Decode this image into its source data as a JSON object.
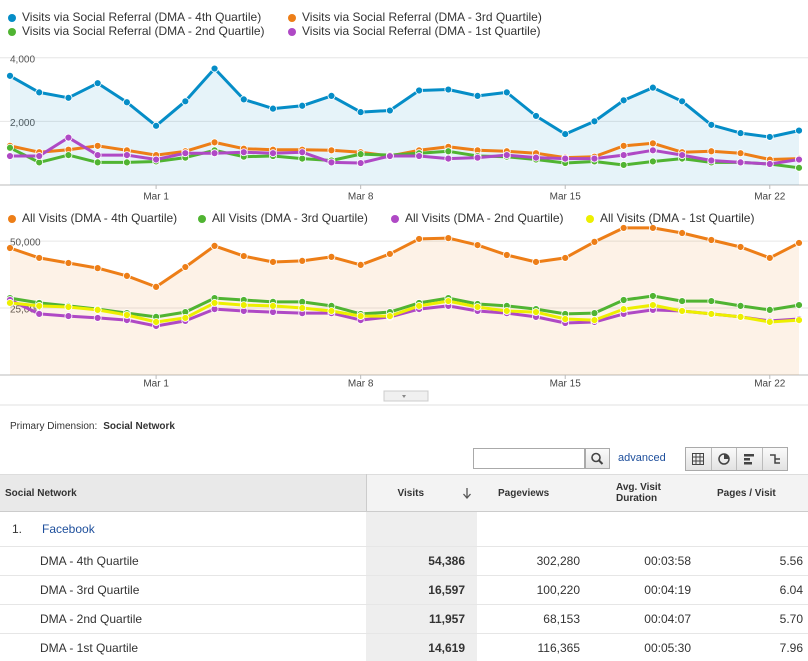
{
  "chart_data": [
    {
      "type": "line",
      "categories": [
        null,
        null,
        null,
        null,
        null,
        "Mar 1",
        null,
        null,
        null,
        null,
        null,
        null,
        "Mar 8",
        null,
        null,
        null,
        null,
        null,
        null,
        "Mar 15",
        null,
        null,
        null,
        null,
        null,
        null,
        "Mar 22",
        null
      ],
      "ylim": [
        0,
        4400
      ],
      "yticks": [
        {
          "value": 2000,
          "label": "2,000"
        },
        {
          "value": 4000,
          "label": "4,000"
        }
      ],
      "grid": true,
      "series": [
        {
          "name": "Visits via Social Referral (DMA - 4th Quartile)",
          "color": "#058dc7",
          "area": true,
          "values": [
            3430,
            2910,
            2740,
            3200,
            2600,
            1860,
            2630,
            3660,
            2690,
            2400,
            2490,
            2800,
            2290,
            2340,
            2970,
            3000,
            2800,
            2910,
            2170,
            1600,
            2000,
            2660,
            3060,
            2630,
            1890,
            1630,
            1510,
            1710
          ]
        },
        {
          "name": "Visits via Social Referral (DMA - 3rd Quartile)",
          "color": "#ed7e17",
          "values": [
            1230,
            1030,
            1110,
            1230,
            1090,
            940,
            1060,
            1340,
            1140,
            1110,
            1110,
            1090,
            1030,
            910,
            1090,
            1200,
            1090,
            1060,
            1000,
            860,
            890,
            1230,
            1310,
            1030,
            1060,
            1000,
            800,
            830
          ]
        },
        {
          "name": "Visits via Social Referral (DMA - 2nd Quartile)",
          "color": "#50b432",
          "values": [
            1170,
            710,
            940,
            710,
            710,
            740,
            860,
            1090,
            890,
            910,
            830,
            770,
            970,
            940,
            1000,
            1060,
            910,
            890,
            800,
            690,
            740,
            630,
            740,
            830,
            710,
            710,
            660,
            540
          ]
        },
        {
          "name": "Visits via Social Referral (DMA - 1st Quartile)",
          "color": "#af49c5",
          "values": [
            910,
            910,
            1490,
            940,
            940,
            800,
            1000,
            1000,
            1030,
            1000,
            1030,
            710,
            690,
            910,
            910,
            830,
            860,
            940,
            860,
            830,
            830,
            940,
            1090,
            940,
            770,
            710,
            660,
            800
          ]
        }
      ]
    },
    {
      "type": "line",
      "categories": [
        null,
        null,
        null,
        null,
        null,
        "Mar 1",
        null,
        null,
        null,
        null,
        null,
        null,
        "Mar 8",
        null,
        null,
        null,
        null,
        null,
        null,
        "Mar 15",
        null,
        null,
        null,
        null,
        null,
        null,
        "Mar 22",
        null
      ],
      "ylim": [
        0,
        56000
      ],
      "yticks": [
        {
          "value": 25000,
          "label": "25,000"
        },
        {
          "value": 50000,
          "label": "50,000"
        }
      ],
      "grid": true,
      "series": [
        {
          "name": "All Visits (DMA - 4th Quartile)",
          "color": "#ed7e17",
          "area": true,
          "values": [
            47400,
            43700,
            41800,
            39900,
            37000,
            32900,
            40300,
            48200,
            44400,
            42200,
            42600,
            44100,
            41100,
            45200,
            50800,
            51100,
            48500,
            44800,
            42200,
            43700,
            49700,
            54900,
            54900,
            53000,
            50400,
            47800,
            43700,
            49300
          ]
        },
        {
          "name": "All Visits (DMA - 3rd Quartile)",
          "color": "#50b432",
          "values": [
            28700,
            26900,
            25800,
            24600,
            23100,
            21700,
            23500,
            28700,
            28000,
            27300,
            27300,
            25800,
            22800,
            23500,
            26900,
            28700,
            26500,
            25800,
            24600,
            22800,
            23100,
            28000,
            29500,
            27600,
            27600,
            25800,
            24300,
            26100
          ]
        },
        {
          "name": "All Visits (DMA - 2nd Quartile)",
          "color": "#af49c5",
          "values": [
            28000,
            22800,
            22000,
            21300,
            20500,
            18300,
            20200,
            24600,
            23900,
            23500,
            23100,
            23100,
            20500,
            21700,
            24600,
            25800,
            23900,
            23100,
            21700,
            19400,
            19800,
            22800,
            24300,
            23900,
            22800,
            21700,
            20200,
            20900
          ]
        },
        {
          "name": "All Visits (DMA - 1st Quartile)",
          "color": "#edef00",
          "values": [
            26900,
            25800,
            25400,
            24300,
            22400,
            19800,
            21300,
            26900,
            26100,
            25800,
            25000,
            23900,
            22000,
            22000,
            25800,
            27600,
            25400,
            23900,
            23500,
            20900,
            20500,
            24600,
            26100,
            23900,
            22800,
            21700,
            19800,
            20500
          ]
        }
      ]
    }
  ],
  "primary_dimension": {
    "label": "Primary Dimension:",
    "value": "Social Network"
  },
  "toolbar": {
    "advanced": "advanced"
  },
  "table": {
    "columns": [
      "Social Network",
      "Visits",
      "Pageviews",
      "Avg. Visit Duration",
      "Pages / Visit"
    ],
    "group": {
      "index": "1.",
      "name": "Facebook"
    },
    "rows": [
      [
        "DMA - 4th Quartile",
        "54,386",
        "302,280",
        "00:03:58",
        "5.56"
      ],
      [
        "DMA - 3rd Quartile",
        "16,597",
        "100,220",
        "00:04:19",
        "6.04"
      ],
      [
        "DMA - 2nd Quartile",
        "11,957",
        "68,153",
        "00:04:07",
        "5.70"
      ],
      [
        "DMA - 1st Quartile",
        "14,619",
        "116,365",
        "00:05:30",
        "7.96"
      ]
    ]
  }
}
